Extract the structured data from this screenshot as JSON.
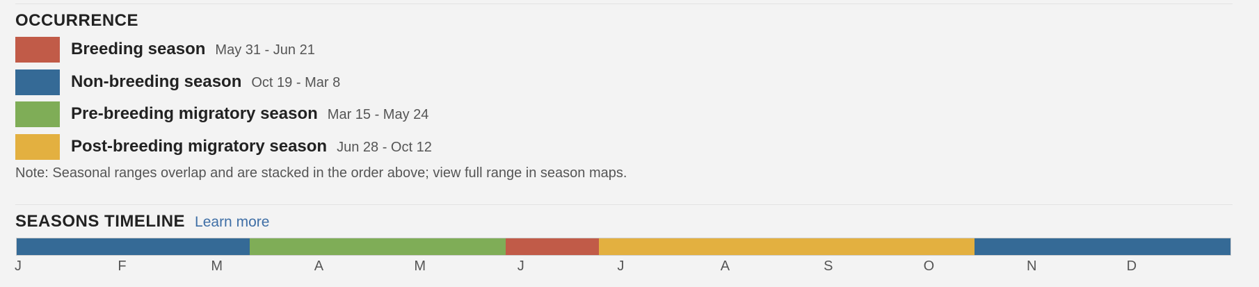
{
  "occurrence": {
    "title": "OCCURRENCE",
    "seasons": [
      {
        "label": "Breeding season",
        "dates": "May 31 - Jun 21",
        "color": "#c15b48"
      },
      {
        "label": "Non-breeding season",
        "dates": "Oct 19 - Mar 8",
        "color": "#356a96"
      },
      {
        "label": "Pre-breeding migratory season",
        "dates": "Mar 15 - May 24",
        "color": "#7fad57"
      },
      {
        "label": "Post-breeding migratory season",
        "dates": "Jun 28 - Oct 12",
        "color": "#e3b040"
      }
    ],
    "note": "Note: Seasonal ranges overlap and are stacked in the order above; view full range in season maps."
  },
  "timeline": {
    "title": "SEASONS TIMELINE",
    "learn_more": "Learn more",
    "segments": [
      {
        "season": "Non-breeding season",
        "start": "Jan 1",
        "end": "Mar 8",
        "color": "#356a96"
      },
      {
        "season": "Pre-breeding migratory season",
        "start": "Mar 15",
        "end": "May 24",
        "color": "#7fad57"
      },
      {
        "season": "Breeding season",
        "start": "May 31",
        "end": "Jun 21",
        "color": "#c15b48"
      },
      {
        "season": "Post-breeding migratory season",
        "start": "Jun 28",
        "end": "Oct 12",
        "color": "#e3b040"
      },
      {
        "season": "Non-breeding season",
        "start": "Oct 19",
        "end": "Dec 31",
        "color": "#356a96"
      }
    ],
    "months": [
      "J",
      "F",
      "M",
      "A",
      "M",
      "J",
      "J",
      "A",
      "S",
      "O",
      "N",
      "D"
    ]
  }
}
